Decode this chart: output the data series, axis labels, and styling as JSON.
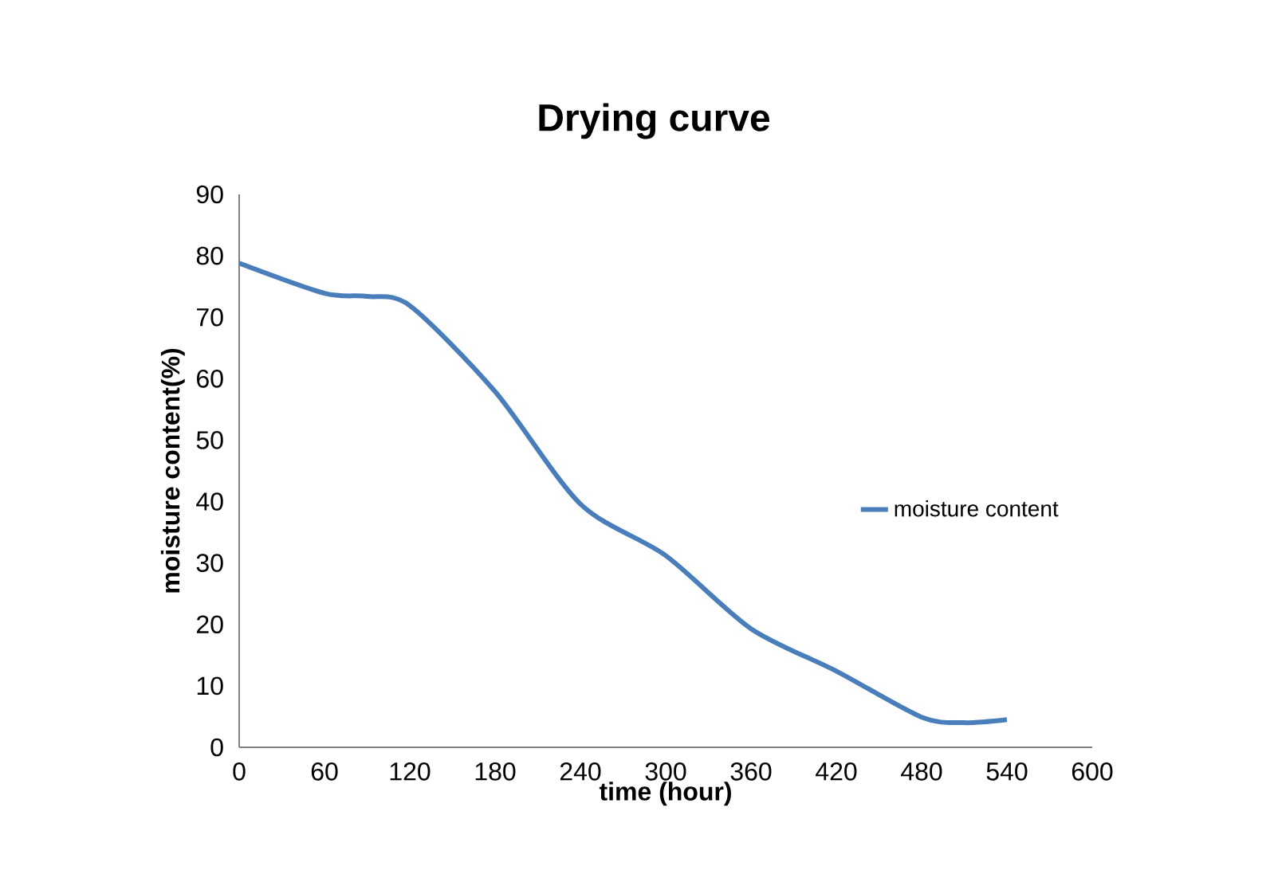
{
  "chart_data": {
    "type": "line",
    "title": "Drying curve",
    "xlabel": "time (hour)",
    "ylabel": "moisture content(%)",
    "series": [
      {
        "name": "moisture content",
        "color": "#4a7ebb",
        "x": [
          0,
          60,
          90,
          120,
          180,
          240,
          300,
          360,
          420,
          480,
          510,
          540
        ],
        "values": [
          78.8,
          73.9,
          73.4,
          71.9,
          57.9,
          39.6,
          31.2,
          19.3,
          12.4,
          4.9,
          4.0,
          4.5
        ]
      }
    ],
    "xlim": [
      0,
      600
    ],
    "xticks": [
      0,
      60,
      120,
      180,
      240,
      300,
      360,
      420,
      480,
      540,
      600
    ],
    "ylim": [
      0,
      90
    ],
    "yticks": [
      0,
      10,
      20,
      30,
      40,
      50,
      60,
      70,
      80,
      90
    ],
    "grid": false,
    "legend": "right",
    "marker": "none",
    "line_style": "solid"
  }
}
